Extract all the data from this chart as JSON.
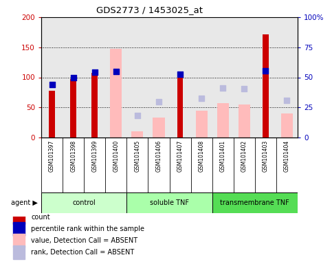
{
  "title": "GDS2773 / 1453025_at",
  "samples": [
    "GSM101397",
    "GSM101398",
    "GSM101399",
    "GSM101400",
    "GSM101405",
    "GSM101406",
    "GSM101407",
    "GSM101408",
    "GSM101401",
    "GSM101402",
    "GSM101403",
    "GSM101404"
  ],
  "red_bars": [
    78,
    97,
    107,
    null,
    null,
    null,
    106,
    null,
    null,
    null,
    172,
    null
  ],
  "blue_dots_pct": [
    44,
    50,
    54.5,
    55,
    null,
    null,
    52.5,
    null,
    null,
    null,
    55.5,
    null
  ],
  "pink_bars": [
    null,
    null,
    null,
    147,
    10,
    33,
    null,
    45,
    57,
    55,
    null,
    40
  ],
  "lavender_dots_pct": [
    null,
    null,
    null,
    null,
    18.5,
    29.5,
    null,
    32.5,
    41,
    40.5,
    null,
    31
  ],
  "ylim_left": [
    0,
    200
  ],
  "ylim_right": [
    0,
    100
  ],
  "yticks_left": [
    0,
    50,
    100,
    150,
    200
  ],
  "yticks_right": [
    0,
    25,
    50,
    75,
    100
  ],
  "red_color": "#cc0000",
  "blue_color": "#0000bb",
  "pink_color": "#ffbbbb",
  "lavender_color": "#bbbbdd",
  "bg_plot": "#e8e8e8",
  "bg_xtick": "#d0d0d0",
  "group_colors": [
    "#ccffcc",
    "#aaffaa",
    "#55dd55"
  ],
  "group_names": [
    "control",
    "soluble TNF",
    "transmembrane TNF"
  ],
  "group_ranges": [
    [
      0,
      4
    ],
    [
      4,
      8
    ],
    [
      8,
      12
    ]
  ],
  "legend_items": [
    {
      "color": "#cc0000",
      "label": "count"
    },
    {
      "color": "#0000bb",
      "label": "percentile rank within the sample"
    },
    {
      "color": "#ffbbbb",
      "label": "value, Detection Call = ABSENT"
    },
    {
      "color": "#bbbbdd",
      "label": "rank, Detection Call = ABSENT"
    }
  ],
  "red_bar_width": 0.28,
  "pink_bar_width": 0.55,
  "dot_size": 30
}
